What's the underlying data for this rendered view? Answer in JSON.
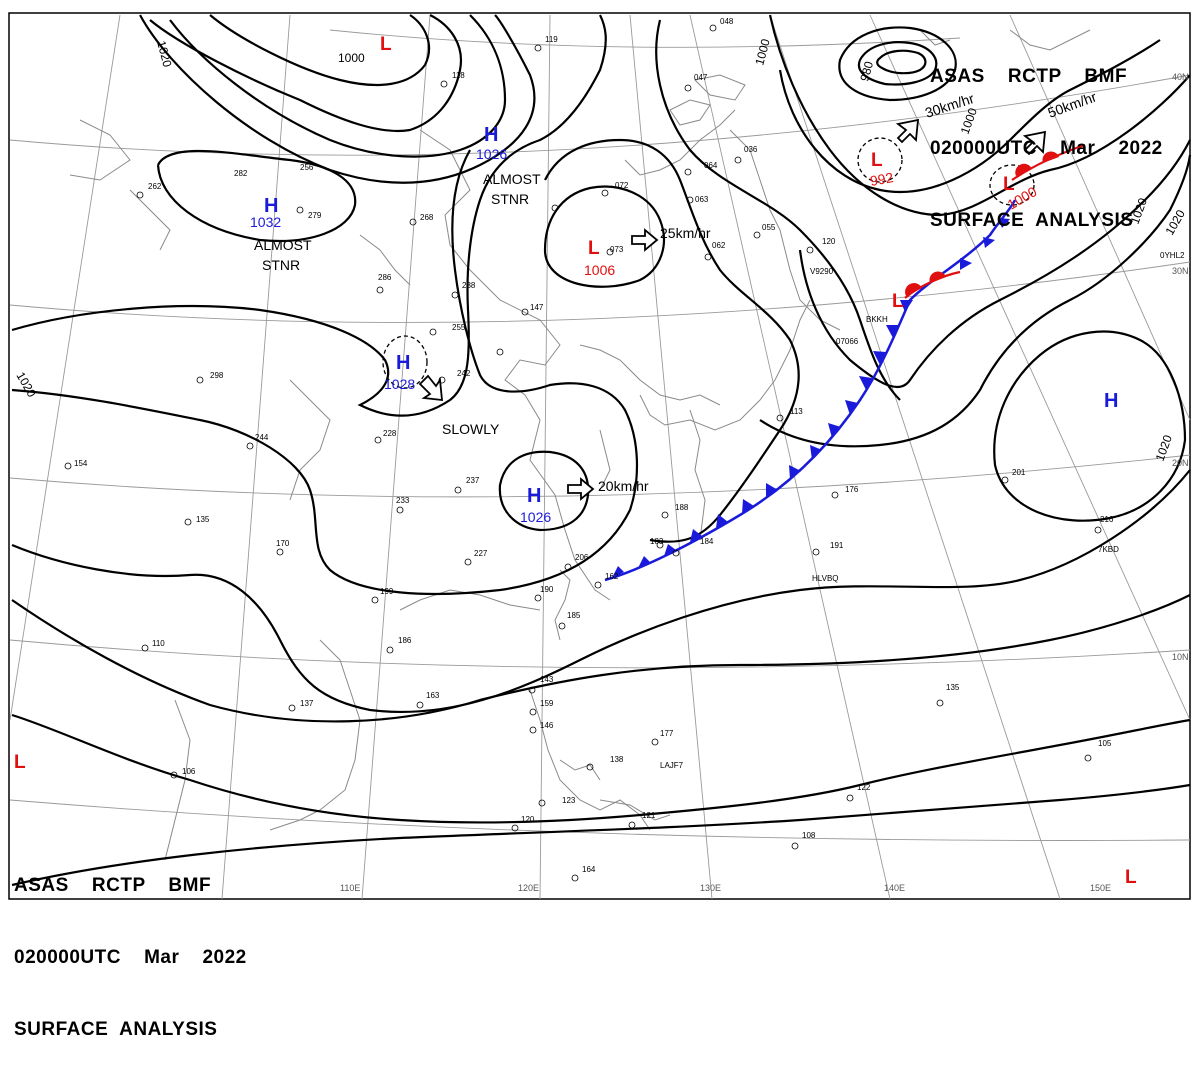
{
  "header": {
    "line1": "ASAS    RCTP    BMF",
    "line2": "020000UTC    Mar    2022",
    "line3": "SURFACE  ANALYSIS"
  },
  "longitude_labels": [
    "110E",
    "120E",
    "130E",
    "140E",
    "150E"
  ],
  "latitude_labels": [
    "40N",
    "30N",
    "20N",
    "10N"
  ],
  "isobar_labels": [
    "1000",
    "1020",
    "1020",
    "980",
    "1000",
    "1000",
    "1020",
    "1020",
    "1020"
  ],
  "pressure_centers": [
    {
      "type": "H",
      "value": "1032",
      "color": "#1a1adb"
    },
    {
      "type": "H",
      "value": "1026",
      "color": "#1a1adb"
    },
    {
      "type": "H",
      "value": "1028",
      "color": "#1a1adb"
    },
    {
      "type": "H",
      "value": "1026",
      "color": "#1a1adb"
    },
    {
      "type": "H",
      "value": "",
      "color": "#1a1adb"
    },
    {
      "type": "L",
      "value": "1006",
      "color": "#e01010"
    },
    {
      "type": "L",
      "value": "992",
      "color": "#e01010"
    },
    {
      "type": "L",
      "value": "1000",
      "color": "#e01010"
    },
    {
      "type": "L",
      "value": "",
      "color": "#e01010"
    },
    {
      "type": "L",
      "value": "",
      "color": "#e01010"
    },
    {
      "type": "L",
      "value": "",
      "color": "#e01010"
    },
    {
      "type": "L",
      "value": "",
      "color": "#e01010"
    }
  ],
  "motion_labels": [
    "ALMOST",
    "STNR",
    "ALMOST",
    "STNR",
    "SLOWLY",
    "25km/hr",
    "20km/hr",
    "30km/hr",
    "50km/hr"
  ],
  "station_labels": [
    "119",
    "118",
    "262",
    "282",
    "279",
    "268",
    "286",
    "238",
    "255",
    "298",
    "244",
    "154",
    "135",
    "228",
    "242",
    "237",
    "233",
    "227",
    "170",
    "199",
    "186",
    "163",
    "137",
    "110",
    "106",
    "206",
    "190",
    "185",
    "183",
    "184",
    "188",
    "191",
    "176",
    "201",
    "113",
    "072",
    "073",
    "064",
    "063",
    "062",
    "055",
    "120",
    "047",
    "048",
    "036",
    "147",
    "143",
    "159",
    "146",
    "138",
    "177",
    "135",
    "105",
    "122",
    "108",
    "123",
    "120",
    "121",
    "164",
    "162",
    "216",
    "256"
  ],
  "ship_ids": [
    "V9290",
    "BKKH",
    "07066",
    "HLVBQ",
    "7KBD",
    "0YHL2",
    "LAJF7"
  ],
  "colors": {
    "isobar": "#000000",
    "high": "#1a1adb",
    "low": "#e01010",
    "cold_front": "#1a1adb",
    "warm_front": "#e01010",
    "grid": "#9a9a9a",
    "coast": "#8a8a8a"
  }
}
